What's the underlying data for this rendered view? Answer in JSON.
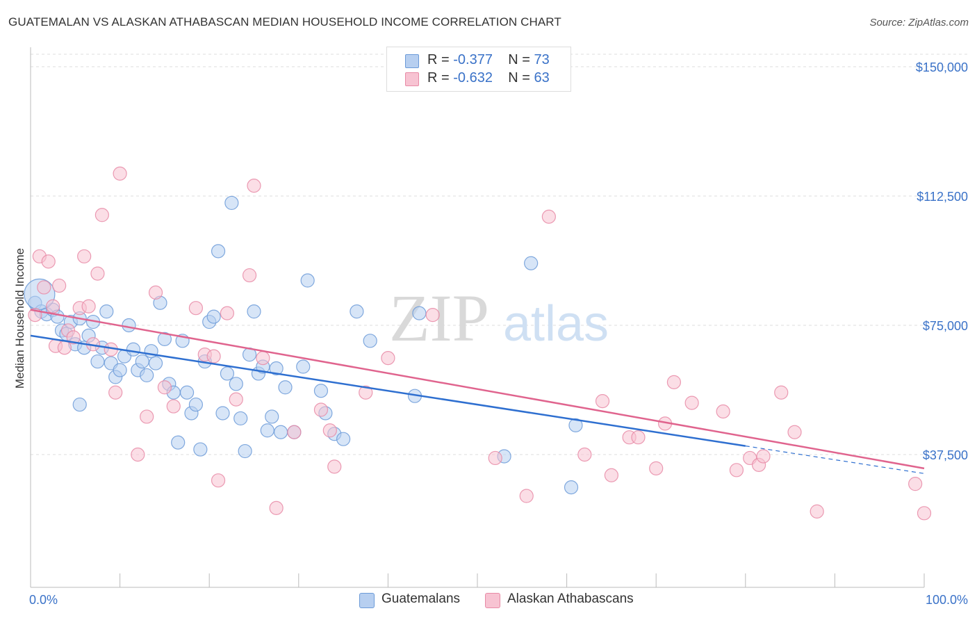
{
  "header": {
    "title": "GUATEMALAN VS ALASKAN ATHABASCAN MEDIAN HOUSEHOLD INCOME CORRELATION CHART",
    "source": "Source: ZipAtlas.com"
  },
  "watermark": {
    "zip": "ZIP",
    "atlas": "atlas"
  },
  "colors": {
    "blue_fill": "#b7cff0",
    "blue_stroke": "#6b9ad8",
    "blue_line": "#2e6fd0",
    "pink_fill": "#f7c3d2",
    "pink_stroke": "#e88aa6",
    "pink_line": "#e0648e",
    "grid": "#dddddd",
    "tick_text": "#3a72c8"
  },
  "stats_legend": {
    "rows": [
      {
        "r_label": "R =",
        "r_value": "-0.377",
        "n_label": "N =",
        "n_value": "73",
        "color": "#b7cff0"
      },
      {
        "r_label": "R =",
        "r_value": "-0.632",
        "n_label": "N =",
        "n_value": "63",
        "color": "#f7c3d2"
      }
    ]
  },
  "bottom_legend": [
    {
      "label": "Guatemalans",
      "color": "#b7cff0"
    },
    {
      "label": "Alaskan Athabascans",
      "color": "#f7c3d2"
    }
  ],
  "chart_data": {
    "type": "scatter",
    "title": "GUATEMALAN VS ALASKAN ATHABASCAN MEDIAN HOUSEHOLD INCOME CORRELATION CHART",
    "xlabel": "",
    "ylabel": "Median Household Income",
    "xlim": [
      0,
      100
    ],
    "ylim": [
      0,
      155000
    ],
    "x_ticks_labeled": [
      {
        "value": 0,
        "label": "0.0%"
      },
      {
        "value": 100,
        "label": "100.0%"
      }
    ],
    "y_ticks": [
      {
        "value": 37500,
        "label": "$37,500"
      },
      {
        "value": 75000,
        "label": "$75,000"
      },
      {
        "value": 112500,
        "label": "$112,500"
      },
      {
        "value": 150000,
        "label": "$150,000"
      }
    ],
    "grid": true,
    "legend_position": "top-center",
    "series": [
      {
        "name": "Guatemalans",
        "color": "#b7cff0",
        "trend": {
          "x0": 0,
          "y0": 72000,
          "x1": 80,
          "y1": 40000,
          "dashed_to_x": 100,
          "dashed_to_y": 32000
        },
        "points": [
          [
            0.5,
            81500
          ],
          [
            1.2,
            79000
          ],
          [
            1.8,
            78200
          ],
          [
            2.5,
            79500
          ],
          [
            3.0,
            77500
          ],
          [
            3.5,
            73500
          ],
          [
            4.0,
            72500
          ],
          [
            4.5,
            76000
          ],
          [
            5.0,
            69500
          ],
          [
            5.5,
            77000
          ],
          [
            6.0,
            68500
          ],
          [
            6.5,
            72000
          ],
          [
            7.0,
            76000
          ],
          [
            7.5,
            64500
          ],
          [
            8.0,
            68500
          ],
          [
            8.5,
            79000
          ],
          [
            9.0,
            64000
          ],
          [
            9.5,
            60000
          ],
          [
            10.0,
            62000
          ],
          [
            10.5,
            66000
          ],
          [
            11.0,
            75000
          ],
          [
            11.5,
            68000
          ],
          [
            12.0,
            62000
          ],
          [
            12.5,
            64500
          ],
          [
            13.0,
            60500
          ],
          [
            13.5,
            67500
          ],
          [
            14.0,
            64000
          ],
          [
            14.5,
            81500
          ],
          [
            15.0,
            71000
          ],
          [
            15.5,
            58000
          ],
          [
            16.0,
            55500
          ],
          [
            16.5,
            41000
          ],
          [
            17.0,
            70500
          ],
          [
            17.5,
            55500
          ],
          [
            18.0,
            49500
          ],
          [
            18.5,
            52000
          ],
          [
            19.0,
            39000
          ],
          [
            19.5,
            64500
          ],
          [
            20.0,
            76000
          ],
          [
            20.5,
            77500
          ],
          [
            21.0,
            96500
          ],
          [
            21.5,
            49500
          ],
          [
            22.0,
            61000
          ],
          [
            22.5,
            110500
          ],
          [
            23.0,
            58000
          ],
          [
            23.5,
            48000
          ],
          [
            24.0,
            38500
          ],
          [
            24.5,
            66500
          ],
          [
            25.0,
            79000
          ],
          [
            25.5,
            61000
          ],
          [
            26.0,
            63000
          ],
          [
            26.5,
            44500
          ],
          [
            27.0,
            48500
          ],
          [
            27.5,
            62500
          ],
          [
            28.0,
            44000
          ],
          [
            28.5,
            57000
          ],
          [
            29.5,
            44000
          ],
          [
            30.5,
            63000
          ],
          [
            31.0,
            88000
          ],
          [
            32.5,
            56000
          ],
          [
            33.0,
            49500
          ],
          [
            34.0,
            43500
          ],
          [
            35.0,
            42000
          ],
          [
            36.5,
            79000
          ],
          [
            38.0,
            70500
          ],
          [
            43.0,
            54500
          ],
          [
            43.5,
            78500
          ],
          [
            53.0,
            37000
          ],
          [
            56.0,
            93000
          ],
          [
            60.5,
            28000
          ],
          [
            61.0,
            46000
          ],
          [
            1.0,
            84000
          ],
          [
            5.5,
            52000
          ]
        ]
      },
      {
        "name": "Alaskan Athabascans",
        "color": "#f7c3d2",
        "trend": {
          "x0": 0,
          "y0": 79500,
          "x1": 100,
          "y1": 33500
        },
        "points": [
          [
            0.5,
            78000
          ],
          [
            1.0,
            95000
          ],
          [
            1.5,
            86000
          ],
          [
            2.0,
            93500
          ],
          [
            2.5,
            80500
          ],
          [
            2.8,
            69000
          ],
          [
            3.2,
            86500
          ],
          [
            3.8,
            68500
          ],
          [
            4.2,
            73500
          ],
          [
            4.8,
            71500
          ],
          [
            5.5,
            80000
          ],
          [
            6.0,
            95000
          ],
          [
            6.5,
            80500
          ],
          [
            7.0,
            69500
          ],
          [
            7.5,
            90000
          ],
          [
            8.0,
            107000
          ],
          [
            9.0,
            68000
          ],
          [
            9.5,
            55500
          ],
          [
            10.0,
            119000
          ],
          [
            12.0,
            37500
          ],
          [
            13.0,
            48500
          ],
          [
            14.0,
            84500
          ],
          [
            15.0,
            57000
          ],
          [
            16.0,
            51500
          ],
          [
            18.5,
            80000
          ],
          [
            19.5,
            66500
          ],
          [
            20.5,
            66000
          ],
          [
            21.0,
            30000
          ],
          [
            22.0,
            78500
          ],
          [
            23.0,
            53500
          ],
          [
            24.5,
            89500
          ],
          [
            25.0,
            115500
          ],
          [
            26.0,
            65500
          ],
          [
            27.5,
            22000
          ],
          [
            29.5,
            44000
          ],
          [
            32.5,
            50500
          ],
          [
            33.5,
            44500
          ],
          [
            34.0,
            34000
          ],
          [
            37.5,
            55500
          ],
          [
            40.0,
            65500
          ],
          [
            45.0,
            78000
          ],
          [
            52.0,
            36500
          ],
          [
            55.5,
            25500
          ],
          [
            58.0,
            106500
          ],
          [
            62.0,
            37500
          ],
          [
            64.0,
            53000
          ],
          [
            65.0,
            31500
          ],
          [
            67.0,
            42500
          ],
          [
            68.0,
            42500
          ],
          [
            70.0,
            33500
          ],
          [
            71.0,
            46500
          ],
          [
            72.0,
            58500
          ],
          [
            74.0,
            52500
          ],
          [
            77.5,
            50000
          ],
          [
            79.0,
            33000
          ],
          [
            80.5,
            36500
          ],
          [
            81.5,
            34500
          ],
          [
            82.0,
            37000
          ],
          [
            84.0,
            55500
          ],
          [
            85.5,
            44000
          ],
          [
            88.0,
            21000
          ],
          [
            99.0,
            29000
          ],
          [
            100.0,
            20500
          ]
        ]
      }
    ]
  }
}
